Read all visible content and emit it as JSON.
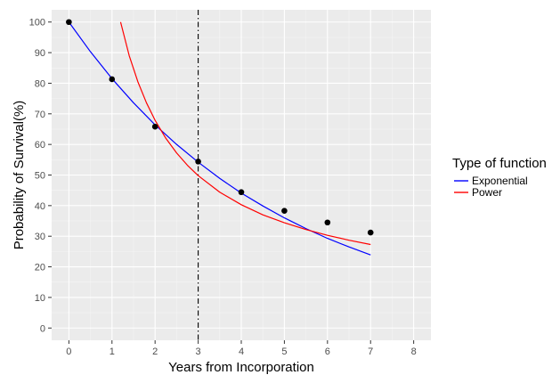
{
  "chart_data": {
    "type": "line",
    "xlabel": "Years from Incorporation",
    "ylabel": "Probability of Survival(%)",
    "xlim": [
      -0.4,
      8.4
    ],
    "ylim": [
      -4,
      104
    ],
    "xticks": [
      0,
      1,
      2,
      3,
      4,
      5,
      6,
      7,
      8
    ],
    "yticks": [
      0,
      10,
      20,
      30,
      40,
      50,
      60,
      70,
      80,
      90,
      100
    ],
    "grid": true,
    "legend": {
      "title": "Type of function",
      "position": "right"
    },
    "points": {
      "x": [
        0,
        1,
        2,
        3,
        4,
        5,
        6,
        7
      ],
      "y": [
        100,
        81.3,
        65.8,
        54.4,
        44.4,
        38.3,
        34.5,
        31.2
      ],
      "color": "#000000"
    },
    "series": [
      {
        "name": "Exponential",
        "color": "#0000ff",
        "x": [
          0,
          0.5,
          1,
          1.5,
          2,
          2.5,
          3,
          3.5,
          4,
          4.5,
          5,
          5.5,
          6,
          6.5,
          7
        ],
        "y": [
          100,
          90.3,
          81.5,
          73.6,
          66.4,
          60.0,
          54.2,
          48.9,
          44.1,
          39.9,
          36.0,
          32.5,
          29.3,
          26.5,
          23.9
        ]
      },
      {
        "name": "Power",
        "color": "#ff0000",
        "x": [
          1.2,
          1.4,
          1.6,
          1.8,
          2.0,
          2.25,
          2.5,
          2.75,
          3.0,
          3.5,
          4.0,
          4.5,
          5.0,
          5.5,
          6.0,
          6.5,
          7.0
        ],
        "y": [
          100.0,
          89.0,
          80.5,
          73.6,
          67.9,
          62.0,
          57.2,
          53.2,
          49.8,
          44.4,
          40.3,
          37.0,
          34.4,
          32.2,
          30.3,
          28.7,
          27.3
        ]
      }
    ],
    "reference_line": {
      "x": 3,
      "style": "dashdot",
      "color": "#000000"
    },
    "colors": {
      "panel": "#ebebeb",
      "grid_major": "#ffffff",
      "grid_minor": "#f5f5f5"
    }
  }
}
